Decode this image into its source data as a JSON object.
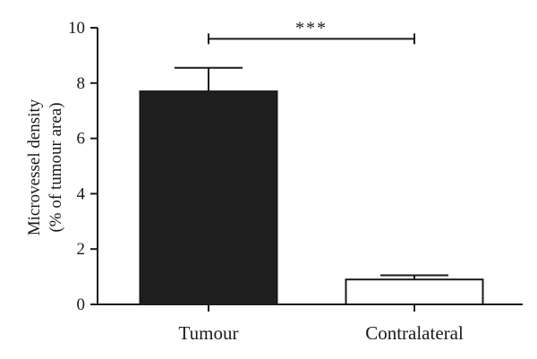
{
  "chart_data": {
    "type": "bar",
    "categories": [
      "Tumour",
      "Contralateral"
    ],
    "values": [
      7.7,
      0.9
    ],
    "errors": [
      0.85,
      0.15
    ],
    "bar_colors": [
      "#1f1f1f",
      "#ffffff"
    ],
    "ylabel_line1": "Microvessel density",
    "ylabel_line2": "(% of tumour area)",
    "ylim": [
      0,
      10
    ],
    "yticks": [
      0,
      2,
      4,
      6,
      8,
      10
    ],
    "significance": {
      "text": "***",
      "between": [
        0,
        1
      ],
      "y": 9.6
    },
    "grid": false
  }
}
